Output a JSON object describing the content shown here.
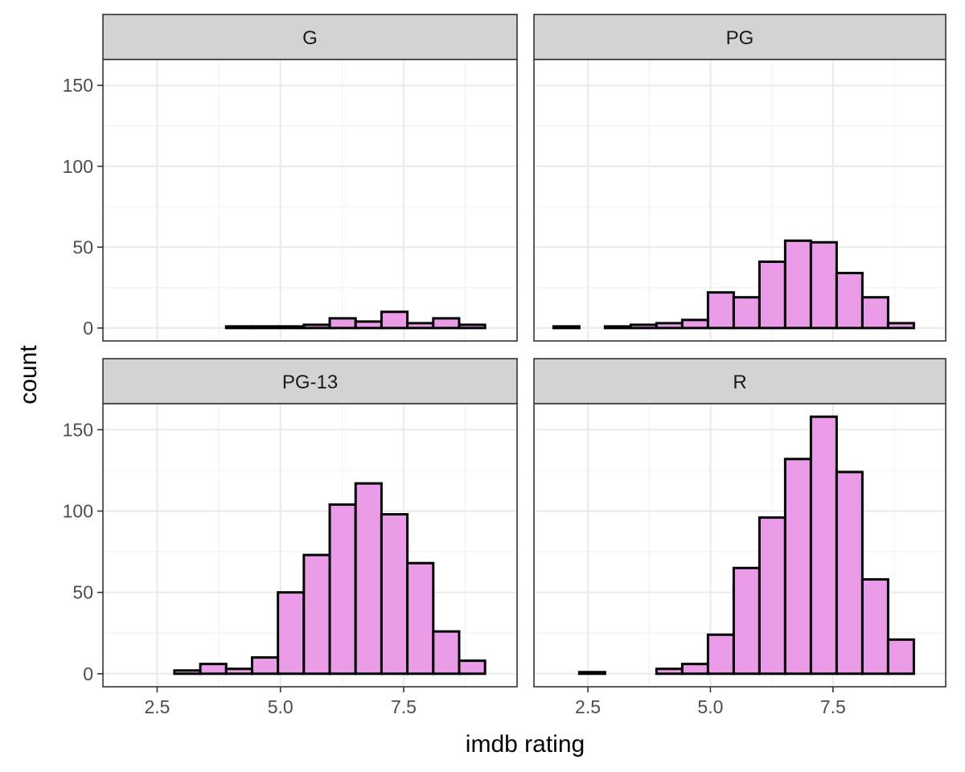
{
  "chart_data": {
    "type": "bar",
    "xlabel": "imdb rating",
    "ylabel": "count",
    "xlim": [
      1.4,
      9.8
    ],
    "ylim": [
      -8,
      166
    ],
    "x_ticks": [
      "2.5",
      "5.0",
      "7.5"
    ],
    "y_ticks": [
      "0",
      "50",
      "100",
      "150"
    ],
    "grid": true,
    "fill_color": "#EB9CE9",
    "edge_color": "#000000",
    "strip_color": "#D3D3D3",
    "bin_edges": [
      1.8,
      2.325,
      2.85,
      3.375,
      3.9,
      4.425,
      4.95,
      5.475,
      6.0,
      6.525,
      7.05,
      7.575,
      8.1,
      8.625,
      9.15
    ],
    "panels": [
      {
        "name": "G",
        "values": [
          0,
          0,
          0,
          0,
          1,
          1,
          1,
          2,
          6,
          4,
          10,
          3,
          6,
          2
        ]
      },
      {
        "name": "PG",
        "values": [
          1,
          0,
          1,
          2,
          3,
          5,
          22,
          19,
          41,
          54,
          53,
          34,
          19,
          3
        ]
      },
      {
        "name": "PG-13",
        "values": [
          0,
          0,
          2,
          6,
          3,
          10,
          50,
          73,
          104,
          117,
          98,
          68,
          26,
          8
        ]
      },
      {
        "name": "R",
        "values": [
          0,
          1,
          0,
          0,
          3,
          6,
          24,
          65,
          96,
          132,
          158,
          124,
          58,
          21
        ]
      }
    ]
  }
}
